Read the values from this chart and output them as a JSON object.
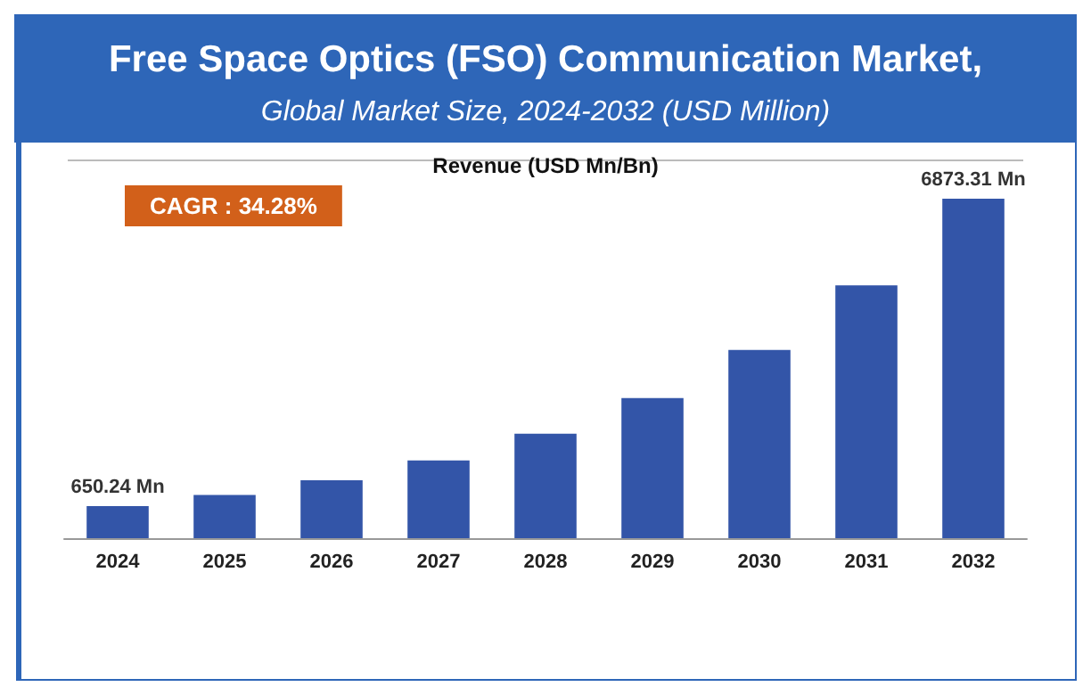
{
  "chart_data": {
    "type": "bar",
    "title": "Free Space Optics (FSO) Communication Market,",
    "subtitle": "Global Market Size, 2024-2032 (USD Million)",
    "ylabel": "Revenue (USD Mn/Bn)",
    "categories": [
      "2024",
      "2025",
      "2026",
      "2027",
      "2028",
      "2029",
      "2030",
      "2031",
      "2032"
    ],
    "values": [
      650.24,
      873,
      1172,
      1574,
      2114,
      2838,
      3811,
      5117,
      6873.31
    ],
    "value_labels": [
      "650.24 Mn",
      null,
      null,
      null,
      null,
      null,
      null,
      null,
      "6873.31 Mn"
    ],
    "color": "#3355a8",
    "annotations": [
      "CAGR : 34.28%"
    ]
  }
}
